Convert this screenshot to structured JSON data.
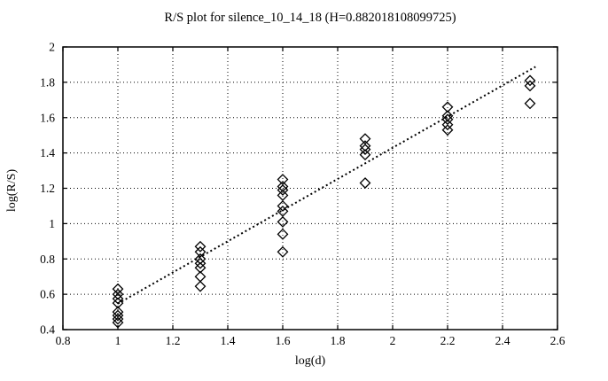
{
  "chart_data": {
    "type": "scatter",
    "title": "R/S plot for silence_10_14_18 (H=0.882018108099725)",
    "xlabel": "log(d)",
    "ylabel": "log(R/S)",
    "xlim": [
      0.8,
      2.6
    ],
    "ylim": [
      0.4,
      2
    ],
    "xticks": [
      0.8,
      1,
      1.2,
      1.4,
      1.6,
      1.8,
      2,
      2.2,
      2.4,
      2.6
    ],
    "yticks": [
      0.4,
      0.6,
      0.8,
      1,
      1.2,
      1.4,
      1.6,
      1.8,
      2
    ],
    "grid": true,
    "legend_position": "none",
    "hurst_exponent": 0.882018108099725,
    "colors": {
      "foreground": "#000000",
      "background": "#ffffff"
    },
    "series": [
      {
        "name": "rs-data-points",
        "marker": "open-diamond",
        "points": [
          [
            1.0,
            0.63
          ],
          [
            1.0,
            0.6
          ],
          [
            1.0,
            0.575
          ],
          [
            1.0,
            0.55
          ],
          [
            1.0,
            0.5
          ],
          [
            1.0,
            0.48
          ],
          [
            1.0,
            0.46
          ],
          [
            1.0,
            0.44
          ],
          [
            1.3,
            0.87
          ],
          [
            1.3,
            0.84
          ],
          [
            1.3,
            0.8
          ],
          [
            1.3,
            0.775
          ],
          [
            1.3,
            0.75
          ],
          [
            1.3,
            0.7
          ],
          [
            1.3,
            0.645
          ],
          [
            1.6,
            1.25
          ],
          [
            1.6,
            1.21
          ],
          [
            1.6,
            1.19
          ],
          [
            1.6,
            1.16
          ],
          [
            1.6,
            1.1
          ],
          [
            1.6,
            1.07
          ],
          [
            1.6,
            1.01
          ],
          [
            1.6,
            0.94
          ],
          [
            1.6,
            0.84
          ],
          [
            1.9,
            1.48
          ],
          [
            1.9,
            1.44
          ],
          [
            1.9,
            1.42
          ],
          [
            1.9,
            1.39
          ],
          [
            1.9,
            1.23
          ],
          [
            2.2,
            1.66
          ],
          [
            2.2,
            1.61
          ],
          [
            2.2,
            1.59
          ],
          [
            2.2,
            1.56
          ],
          [
            2.2,
            1.53
          ],
          [
            2.5,
            1.81
          ],
          [
            2.5,
            1.78
          ],
          [
            2.5,
            1.68
          ]
        ]
      },
      {
        "name": "hurst-fit-line",
        "type": "line",
        "style": "dotted",
        "x": [
          1.0,
          2.52
        ],
        "y": [
          0.547,
          1.888
        ]
      }
    ]
  }
}
